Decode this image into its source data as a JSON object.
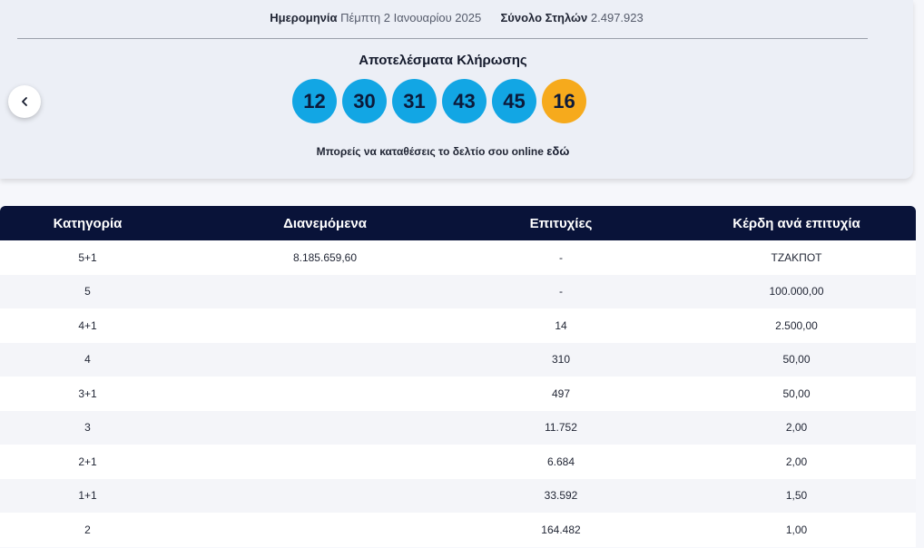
{
  "draw_info": {
    "date_label": "Ημερομηνία",
    "date_value": "Πέμπτη 2 Ιανουαρίου 2025",
    "columns_label": "Σύνολο Στηλών",
    "columns_value": "2.497.923"
  },
  "results": {
    "title": "Αποτελέσματα Κλήρωσης",
    "numbers": [
      "12",
      "30",
      "31",
      "43",
      "45"
    ],
    "joker": "16",
    "colors": {
      "number_ball": "#12a6e4",
      "joker_ball": "#f6aa1c"
    },
    "online_text": "Μπορείς να καταθέσεις το δελτίο σου online",
    "online_link": "εδώ"
  },
  "nav": {
    "prev_icon": "chevron-left-icon",
    "prev_glyph": "‹"
  },
  "table": {
    "headers": {
      "category": "Κατηγορία",
      "distributed": "Διανεμόμενα",
      "winners": "Επιτυχίες",
      "prize": "Κέρδη ανά επιτυχία"
    },
    "header_color": "#091339",
    "rows": [
      {
        "category": "5+1",
        "distributed": "8.185.659,60",
        "winners": "-",
        "prize": "ΤΖΑΚΠΟΤ"
      },
      {
        "category": "5",
        "distributed": "",
        "winners": "-",
        "prize": "100.000,00"
      },
      {
        "category": "4+1",
        "distributed": "",
        "winners": "14",
        "prize": "2.500,00"
      },
      {
        "category": "4",
        "distributed": "",
        "winners": "310",
        "prize": "50,00"
      },
      {
        "category": "3+1",
        "distributed": "",
        "winners": "497",
        "prize": "50,00"
      },
      {
        "category": "3",
        "distributed": "",
        "winners": "11.752",
        "prize": "2,00"
      },
      {
        "category": "2+1",
        "distributed": "",
        "winners": "6.684",
        "prize": "2,00"
      },
      {
        "category": "1+1",
        "distributed": "",
        "winners": "33.592",
        "prize": "1,50"
      },
      {
        "category": "2",
        "distributed": "",
        "winners": "164.482",
        "prize": "1,00"
      }
    ]
  }
}
